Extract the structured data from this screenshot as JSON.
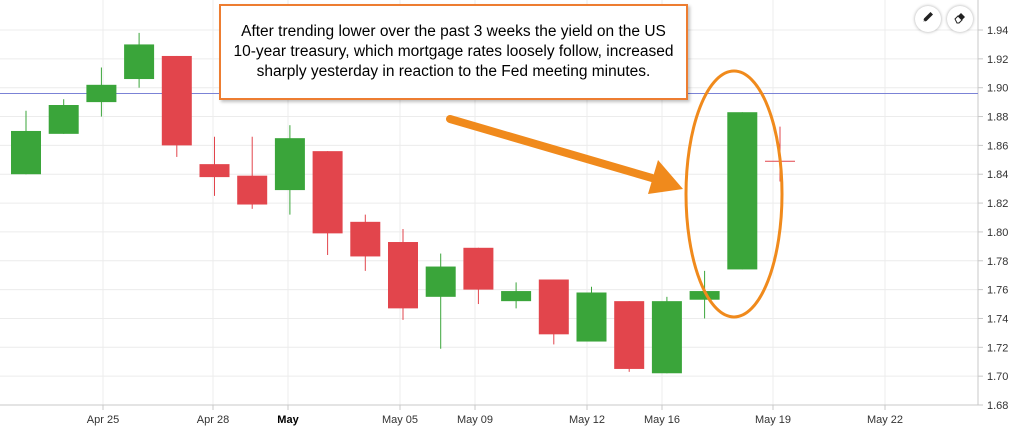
{
  "chart_data": {
    "type": "candlestick",
    "title": "",
    "xlabel": "",
    "ylabel": "",
    "ylim": [
      1.68,
      1.95
    ],
    "y_ticks": [
      "1.68",
      "1.70",
      "1.72",
      "1.74",
      "1.76",
      "1.78",
      "1.80",
      "1.82",
      "1.84",
      "1.86",
      "1.88",
      "1.90",
      "1.92",
      "1.94"
    ],
    "x_tick_labels": [
      {
        "label": "Apr 25",
        "bold": false
      },
      {
        "label": "Apr 28",
        "bold": false
      },
      {
        "label": "May",
        "bold": true
      },
      {
        "label": "May 05",
        "bold": false
      },
      {
        "label": "May 09",
        "bold": false
      },
      {
        "label": "May 12",
        "bold": false
      },
      {
        "label": "May 16",
        "bold": false
      },
      {
        "label": "May 19",
        "bold": false
      },
      {
        "label": "May 22",
        "bold": false
      }
    ],
    "reference_line": 1.896,
    "grid": true,
    "candles": [
      {
        "open": 1.84,
        "high": 1.884,
        "low": 1.84,
        "close": 1.87
      },
      {
        "open": 1.868,
        "high": 1.892,
        "low": 1.868,
        "close": 1.888
      },
      {
        "open": 1.89,
        "high": 1.914,
        "low": 1.88,
        "close": 1.902
      },
      {
        "open": 1.906,
        "high": 1.938,
        "low": 1.9,
        "close": 1.93
      },
      {
        "open": 1.922,
        "high": 1.922,
        "low": 1.852,
        "close": 1.86
      },
      {
        "open": 1.847,
        "high": 1.866,
        "low": 1.825,
        "close": 1.838
      },
      {
        "open": 1.839,
        "high": 1.866,
        "low": 1.816,
        "close": 1.819
      },
      {
        "open": 1.829,
        "high": 1.874,
        "low": 1.812,
        "close": 1.865
      },
      {
        "open": 1.856,
        "high": 1.856,
        "low": 1.784,
        "close": 1.799
      },
      {
        "open": 1.807,
        "high": 1.812,
        "low": 1.773,
        "close": 1.783
      },
      {
        "open": 1.793,
        "high": 1.802,
        "low": 1.739,
        "close": 1.747
      },
      {
        "open": 1.755,
        "high": 1.785,
        "low": 1.719,
        "close": 1.776
      },
      {
        "open": 1.789,
        "high": 1.789,
        "low": 1.75,
        "close": 1.76
      },
      {
        "open": 1.752,
        "high": 1.765,
        "low": 1.747,
        "close": 1.759
      },
      {
        "open": 1.767,
        "high": 1.767,
        "low": 1.722,
        "close": 1.729
      },
      {
        "open": 1.724,
        "high": 1.762,
        "low": 1.724,
        "close": 1.758
      },
      {
        "open": 1.752,
        "high": 1.752,
        "low": 1.703,
        "close": 1.705
      },
      {
        "open": 1.702,
        "high": 1.755,
        "low": 1.702,
        "close": 1.752
      },
      {
        "open": 1.753,
        "high": 1.773,
        "low": 1.74,
        "close": 1.759
      },
      {
        "open": 1.774,
        "high": 1.883,
        "low": 1.774,
        "close": 1.883
      }
    ],
    "last_price_marker": {
      "value": 1.849,
      "high": 1.873,
      "low": 1.835
    },
    "colors": {
      "up": "#3aa53a",
      "down": "#e2454c",
      "reference_line": "#7b83d6",
      "highlight": "#f08a1c"
    }
  },
  "annotation": {
    "text": "After trending lower over the past 3 weeks the yield on the US 10-year treasury, which mortgage rates loosely follow, increased sharply yesterday in reaction to the Fed meeting minutes."
  },
  "toolbar": {
    "draw_icon": "pencil-icon",
    "erase_icon": "eraser-icon"
  }
}
